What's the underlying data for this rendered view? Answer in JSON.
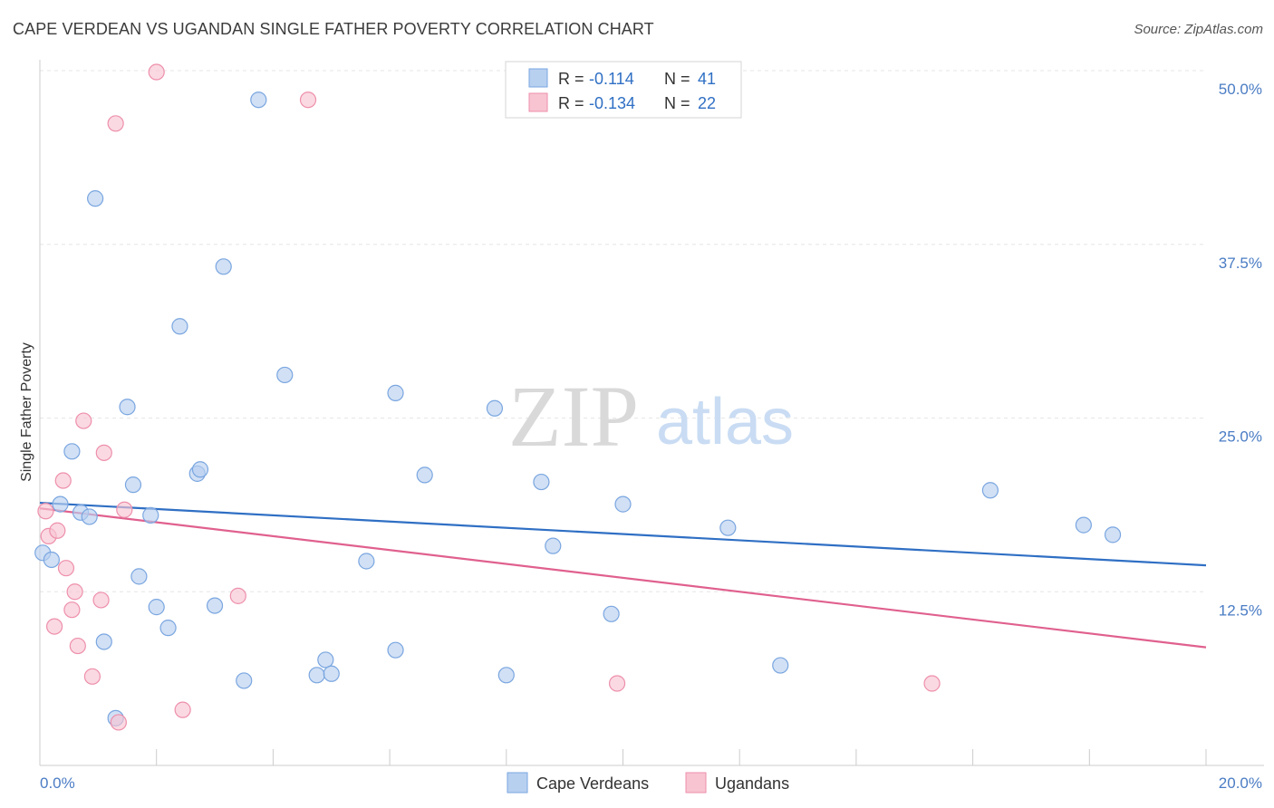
{
  "title": "CAPE VERDEAN VS UGANDAN SINGLE FATHER POVERTY CORRELATION CHART",
  "source": "Source: ZipAtlas.com",
  "watermark": {
    "zip": "ZIP",
    "atlas": "atlas"
  },
  "colors": {
    "blue_fill": "#b8d0f0",
    "blue_stroke": "#7aa6e0",
    "blue_line": "#2f6fc4",
    "pink_fill": "#f8c4d2",
    "pink_stroke": "#ee8fab",
    "pink_line": "#e0608e",
    "tick_text": "#4a7cc4",
    "grid": "#e6e6e6"
  },
  "legend": {
    "rows": [
      {
        "r_label": "R = ",
        "r_value": "-0.114",
        "n_label": "N = ",
        "n_value": "41"
      },
      {
        "r_label": "R = ",
        "r_value": "-0.134",
        "n_label": "N = ",
        "n_value": "22"
      }
    ]
  },
  "bottom_legend": [
    "Cape Verdeans",
    "Ugandans"
  ],
  "chart_data": {
    "type": "scatter",
    "title": "CAPE VERDEAN VS UGANDAN SINGLE FATHER POVERTY CORRELATION CHART",
    "xlabel": "",
    "ylabel": "Single Father Poverty",
    "xlim": [
      0,
      20
    ],
    "ylim": [
      0,
      50
    ],
    "x_tick_labels": [
      "0.0%",
      "20.0%"
    ],
    "y_ticks": [
      12.5,
      25.0,
      37.5,
      50.0
    ],
    "y_tick_labels": [
      "12.5%",
      "25.0%",
      "37.5%",
      "50.0%"
    ],
    "grid": true,
    "legend_position": "top-center",
    "series": [
      {
        "name": "Cape Verdeans",
        "color": "#b8d0f0",
        "points": [
          [
            0.05,
            15.3
          ],
          [
            0.2,
            14.8
          ],
          [
            0.35,
            18.8
          ],
          [
            0.55,
            22.6
          ],
          [
            0.7,
            18.2
          ],
          [
            0.85,
            17.9
          ],
          [
            0.95,
            40.8
          ],
          [
            1.1,
            8.9
          ],
          [
            1.3,
            3.4
          ],
          [
            1.5,
            25.8
          ],
          [
            1.6,
            20.2
          ],
          [
            1.7,
            13.6
          ],
          [
            1.9,
            18.0
          ],
          [
            2.0,
            11.4
          ],
          [
            2.2,
            9.9
          ],
          [
            2.4,
            31.6
          ],
          [
            2.7,
            21.0
          ],
          [
            2.75,
            21.3
          ],
          [
            3.0,
            11.5
          ],
          [
            3.15,
            35.9
          ],
          [
            3.5,
            6.1
          ],
          [
            3.75,
            47.9
          ],
          [
            4.2,
            28.1
          ],
          [
            4.75,
            6.5
          ],
          [
            4.9,
            7.6
          ],
          [
            5.0,
            6.6
          ],
          [
            5.6,
            14.7
          ],
          [
            6.1,
            26.8
          ],
          [
            6.1,
            8.3
          ],
          [
            6.6,
            20.9
          ],
          [
            7.8,
            25.7
          ],
          [
            8.0,
            6.5
          ],
          [
            8.6,
            20.4
          ],
          [
            8.8,
            15.8
          ],
          [
            9.8,
            10.9
          ],
          [
            10.0,
            18.8
          ],
          [
            11.8,
            17.1
          ],
          [
            12.7,
            7.2
          ],
          [
            16.3,
            19.8
          ],
          [
            17.9,
            17.3
          ],
          [
            18.4,
            16.6
          ]
        ],
        "trend": {
          "x": [
            0,
            20
          ],
          "y": [
            18.9,
            14.4
          ]
        }
      },
      {
        "name": "Ugandans",
        "color": "#f8c4d2",
        "points": [
          [
            0.15,
            16.5
          ],
          [
            0.25,
            10.0
          ],
          [
            0.3,
            16.9
          ],
          [
            0.4,
            20.5
          ],
          [
            0.45,
            14.2
          ],
          [
            0.55,
            11.2
          ],
          [
            0.6,
            12.5
          ],
          [
            0.65,
            8.6
          ],
          [
            0.75,
            24.8
          ],
          [
            0.9,
            6.4
          ],
          [
            1.05,
            11.9
          ],
          [
            1.1,
            22.5
          ],
          [
            1.3,
            46.2
          ],
          [
            1.35,
            3.1
          ],
          [
            1.45,
            18.4
          ],
          [
            2.0,
            49.9
          ],
          [
            2.45,
            4.0
          ],
          [
            3.4,
            12.2
          ],
          [
            4.6,
            47.9
          ],
          [
            9.9,
            5.9
          ],
          [
            15.3,
            5.9
          ],
          [
            0.1,
            18.3
          ]
        ],
        "trend": {
          "x": [
            0,
            20
          ],
          "y": [
            18.5,
            8.5
          ]
        }
      }
    ]
  }
}
